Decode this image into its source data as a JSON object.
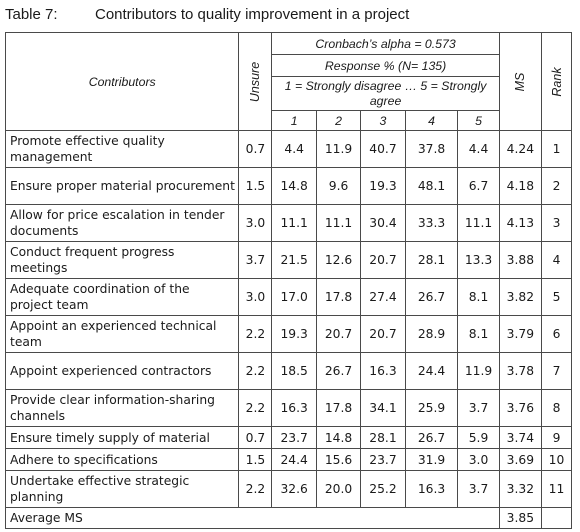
{
  "caption": {
    "number": "Table 7:",
    "title": "Contributors to quality improvement in a project"
  },
  "header": {
    "contributors": "Contributors",
    "unsure": "Unsure",
    "cronbach": "Cronbach’s alpha = 0.573",
    "response": "Response % (N= 135)",
    "scale": "1 = Strongly disagree … 5 = Strongly agree",
    "scale_levels": [
      "1",
      "2",
      "3",
      "4",
      "5"
    ],
    "ms": "MS",
    "rank": "Rank"
  },
  "rows": [
    {
      "contributor": "Promote effective quality management",
      "unsure": "0.7",
      "r1": "4.4",
      "r2": "11.9",
      "r3": "40.7",
      "r4": "37.8",
      "r5": "4.4",
      "ms": "4.24",
      "rank": "1"
    },
    {
      "contributor": "Ensure proper material procurement",
      "unsure": "1.5",
      "r1": "14.8",
      "r2": "9.6",
      "r3": "19.3",
      "r4": "48.1",
      "r5": "6.7",
      "ms": "4.18",
      "rank": "2"
    },
    {
      "contributor": "Allow for price escalation in tender documents",
      "unsure": "3.0",
      "r1": "11.1",
      "r2": "11.1",
      "r3": "30.4",
      "r4": "33.3",
      "r5": "11.1",
      "ms": "4.13",
      "rank": "3"
    },
    {
      "contributor": "Conduct frequent progress meetings",
      "unsure": "3.7",
      "r1": "21.5",
      "r2": "12.6",
      "r3": "20.7",
      "r4": "28.1",
      "r5": "13.3",
      "ms": "3.88",
      "rank": "4"
    },
    {
      "contributor": "Adequate coordination of the project team",
      "unsure": "3.0",
      "r1": "17.0",
      "r2": "17.8",
      "r3": "27.4",
      "r4": "26.7",
      "r5": "8.1",
      "ms": "3.82",
      "rank": "5"
    },
    {
      "contributor": "Appoint an experienced technical team",
      "unsure": "2.2",
      "r1": "19.3",
      "r2": "20.7",
      "r3": "20.7",
      "r4": "28.9",
      "r5": "8.1",
      "ms": "3.79",
      "rank": "6"
    },
    {
      "contributor": "Appoint experienced contractors",
      "unsure": "2.2",
      "r1": "18.5",
      "r2": "26.7",
      "r3": "16.3",
      "r4": "24.4",
      "r5": "11.9",
      "ms": "3.78",
      "rank": "7"
    },
    {
      "contributor": "Provide clear information-sharing channels",
      "unsure": "2.2",
      "r1": "16.3",
      "r2": "17.8",
      "r3": "34.1",
      "r4": "25.9",
      "r5": "3.7",
      "ms": "3.76",
      "rank": "8"
    },
    {
      "contributor": "Ensure timely supply of material",
      "unsure": "0.7",
      "r1": "23.7",
      "r2": "14.8",
      "r3": "28.1",
      "r4": "26.7",
      "r5": "5.9",
      "ms": "3.74",
      "rank": "9"
    },
    {
      "contributor": "Adhere to specifications",
      "unsure": "1.5",
      "r1": "24.4",
      "r2": "15.6",
      "r3": "23.7",
      "r4": "31.9",
      "r5": "3.0",
      "ms": "3.69",
      "rank": "10"
    },
    {
      "contributor": "Undertake effective strategic planning",
      "unsure": "2.2",
      "r1": "32.6",
      "r2": "20.0",
      "r3": "25.2",
      "r4": "16.3",
      "r5": "3.7",
      "ms": "3.32",
      "rank": "11"
    }
  ],
  "footer": {
    "label": "Average MS",
    "ms": "3.85"
  }
}
